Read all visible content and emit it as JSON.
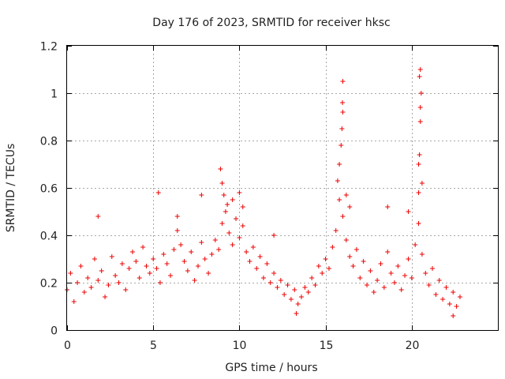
{
  "chart_data": {
    "type": "scatter",
    "title": "Day 176 of 2023, SRMTID for receiver hksc",
    "xlabel": "GPS time / hours",
    "ylabel": "SRMTID / TECUs",
    "xlim": [
      0,
      25
    ],
    "ylim": [
      0,
      1.2
    ],
    "xticks": [
      0,
      5,
      10,
      15,
      20
    ],
    "xtick_labels": [
      "0",
      "5",
      "10",
      "15",
      "20"
    ],
    "yticks": [
      0,
      0.2,
      0.4,
      0.6,
      0.8,
      1.0,
      1.2
    ],
    "ytick_labels": [
      "0",
      "0.2",
      "0.4",
      "0.6",
      "0.8",
      "1",
      "1.2"
    ],
    "grid": true,
    "marker": "+",
    "color": "#ee0000",
    "series": [
      {
        "name": "SRMTID",
        "points": [
          [
            0.0,
            0.17
          ],
          [
            0.2,
            0.24
          ],
          [
            0.4,
            0.12
          ],
          [
            0.6,
            0.2
          ],
          [
            0.8,
            0.27
          ],
          [
            1.0,
            0.16
          ],
          [
            1.2,
            0.22
          ],
          [
            1.4,
            0.18
          ],
          [
            1.6,
            0.3
          ],
          [
            1.8,
            0.21
          ],
          [
            2.0,
            0.25
          ],
          [
            2.2,
            0.14
          ],
          [
            2.4,
            0.19
          ],
          [
            2.6,
            0.31
          ],
          [
            2.8,
            0.23
          ],
          [
            3.0,
            0.2
          ],
          [
            3.2,
            0.28
          ],
          [
            3.4,
            0.17
          ],
          [
            3.6,
            0.26
          ],
          [
            3.8,
            0.33
          ],
          [
            4.0,
            0.29
          ],
          [
            4.2,
            0.22
          ],
          [
            4.4,
            0.35
          ],
          [
            4.6,
            0.27
          ],
          [
            4.8,
            0.24
          ],
          [
            5.0,
            0.3
          ],
          [
            5.2,
            0.26
          ],
          [
            5.4,
            0.2
          ],
          [
            5.6,
            0.32
          ],
          [
            5.8,
            0.28
          ],
          [
            6.0,
            0.23
          ],
          [
            6.2,
            0.34
          ],
          [
            6.4,
            0.42
          ],
          [
            6.6,
            0.36
          ],
          [
            6.8,
            0.29
          ],
          [
            7.0,
            0.25
          ],
          [
            7.2,
            0.33
          ],
          [
            7.4,
            0.21
          ],
          [
            7.6,
            0.27
          ],
          [
            7.8,
            0.37
          ],
          [
            8.0,
            0.3
          ],
          [
            8.2,
            0.24
          ],
          [
            8.4,
            0.32
          ],
          [
            8.6,
            0.38
          ],
          [
            8.8,
            0.34
          ],
          [
            9.0,
            0.45
          ],
          [
            9.2,
            0.5
          ],
          [
            9.4,
            0.41
          ],
          [
            9.6,
            0.36
          ],
          [
            9.8,
            0.47
          ],
          [
            10.0,
            0.39
          ],
          [
            10.2,
            0.44
          ],
          [
            10.4,
            0.33
          ],
          [
            10.6,
            0.29
          ],
          [
            10.8,
            0.35
          ],
          [
            11.0,
            0.26
          ],
          [
            11.2,
            0.31
          ],
          [
            11.4,
            0.22
          ],
          [
            11.6,
            0.28
          ],
          [
            11.8,
            0.2
          ],
          [
            12.0,
            0.24
          ],
          [
            12.2,
            0.18
          ],
          [
            12.4,
            0.21
          ],
          [
            12.6,
            0.15
          ],
          [
            12.8,
            0.19
          ],
          [
            13.0,
            0.13
          ],
          [
            13.2,
            0.17
          ],
          [
            13.4,
            0.11
          ],
          [
            13.6,
            0.14
          ],
          [
            13.8,
            0.18
          ],
          [
            14.0,
            0.16
          ],
          [
            14.2,
            0.22
          ],
          [
            14.4,
            0.19
          ],
          [
            14.6,
            0.27
          ],
          [
            14.8,
            0.24
          ],
          [
            15.0,
            0.3
          ],
          [
            15.2,
            0.26
          ],
          [
            15.4,
            0.35
          ],
          [
            15.6,
            0.42
          ],
          [
            15.8,
            0.55
          ],
          [
            16.0,
            0.48
          ],
          [
            16.2,
            0.38
          ],
          [
            16.4,
            0.31
          ],
          [
            16.6,
            0.27
          ],
          [
            16.8,
            0.34
          ],
          [
            17.0,
            0.22
          ],
          [
            17.2,
            0.29
          ],
          [
            17.4,
            0.19
          ],
          [
            17.6,
            0.25
          ],
          [
            17.8,
            0.16
          ],
          [
            18.0,
            0.21
          ],
          [
            18.2,
            0.28
          ],
          [
            18.4,
            0.18
          ],
          [
            18.6,
            0.33
          ],
          [
            18.8,
            0.24
          ],
          [
            19.0,
            0.2
          ],
          [
            19.2,
            0.27
          ],
          [
            19.4,
            0.17
          ],
          [
            19.6,
            0.23
          ],
          [
            19.8,
            0.3
          ],
          [
            20.0,
            0.22
          ],
          [
            20.2,
            0.36
          ],
          [
            20.4,
            0.45
          ],
          [
            20.6,
            0.32
          ],
          [
            20.8,
            0.24
          ],
          [
            21.0,
            0.19
          ],
          [
            21.2,
            0.26
          ],
          [
            21.4,
            0.15
          ],
          [
            21.6,
            0.21
          ],
          [
            21.8,
            0.13
          ],
          [
            22.0,
            0.18
          ],
          [
            22.2,
            0.11
          ],
          [
            22.4,
            0.16
          ],
          [
            22.6,
            0.1
          ],
          [
            22.8,
            0.14
          ],
          [
            8.9,
            0.68
          ],
          [
            9.0,
            0.62
          ],
          [
            9.1,
            0.57
          ],
          [
            9.3,
            0.53
          ],
          [
            9.6,
            0.55
          ],
          [
            10.0,
            0.58
          ],
          [
            10.2,
            0.52
          ],
          [
            15.7,
            0.63
          ],
          [
            15.8,
            0.7
          ],
          [
            15.9,
            0.78
          ],
          [
            15.95,
            0.85
          ],
          [
            16.0,
            0.92
          ],
          [
            15.98,
            0.96
          ],
          [
            16.0,
            1.05
          ],
          [
            16.2,
            0.57
          ],
          [
            16.4,
            0.52
          ],
          [
            20.4,
            0.58
          ],
          [
            20.4,
            0.7
          ],
          [
            20.45,
            0.74
          ],
          [
            20.5,
            0.88
          ],
          [
            20.5,
            0.94
          ],
          [
            20.55,
            1.0
          ],
          [
            20.45,
            1.07
          ],
          [
            20.5,
            1.1
          ],
          [
            20.6,
            0.62
          ],
          [
            18.6,
            0.52
          ],
          [
            19.8,
            0.5
          ],
          [
            1.8,
            0.48
          ],
          [
            5.3,
            0.58
          ],
          [
            6.4,
            0.48
          ],
          [
            7.8,
            0.57
          ],
          [
            12.0,
            0.4
          ],
          [
            13.3,
            0.07
          ],
          [
            22.4,
            0.06
          ]
        ]
      }
    ]
  }
}
